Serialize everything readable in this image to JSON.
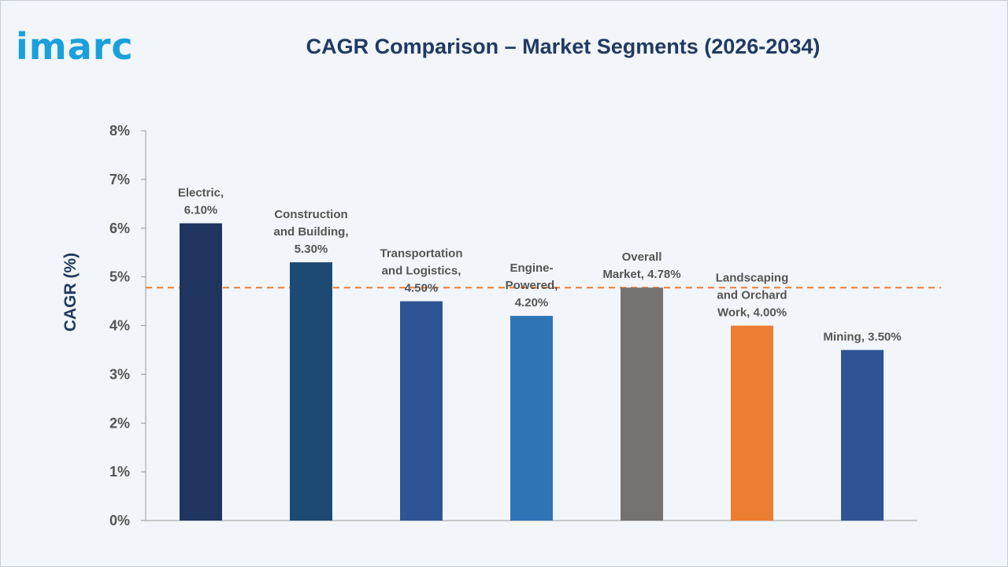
{
  "logo": {
    "text": "imarc",
    "color": "#1aa0dc"
  },
  "chart_data": {
    "type": "bar",
    "title": "CAGR Comparison – Market Segments (2026-2034)",
    "ylabel": "CAGR (%)",
    "xlabel": "",
    "ylim": [
      0,
      8
    ],
    "y_ticks": [
      "0%",
      "1%",
      "2%",
      "3%",
      "4%",
      "5%",
      "6%",
      "7%",
      "8%"
    ],
    "categories": [
      "Electric",
      "Construction and Building",
      "Transportation and Logistics",
      "Engine-Powered",
      "Overall Market",
      "Landscaping and Orchard Work",
      "Mining"
    ],
    "values": [
      6.1,
      5.3,
      4.5,
      4.2,
      4.78,
      4.0,
      3.5
    ],
    "data_labels": [
      [
        "Electric,",
        "6.10%"
      ],
      [
        "Construction",
        "and Building,",
        "5.30%"
      ],
      [
        "Transportation",
        "and Logistics,",
        "4.50%"
      ],
      [
        "Engine-",
        "Powered,",
        "4.20%"
      ],
      [
        "Overall",
        "Market, 4.78%"
      ],
      [
        "Landscaping",
        "and Orchard",
        "Work, 4.00%"
      ],
      [
        "Mining, 3.50%"
      ]
    ],
    "colors": [
      "#1f3560",
      "#1d4a75",
      "#2e5496",
      "#2e75b6",
      "#767171",
      "#ed7d31",
      "#2e5496"
    ],
    "reference_line": {
      "value": 4.78,
      "style": "dashed",
      "color": "#ed7d31"
    },
    "grid": false,
    "legend": "none"
  }
}
